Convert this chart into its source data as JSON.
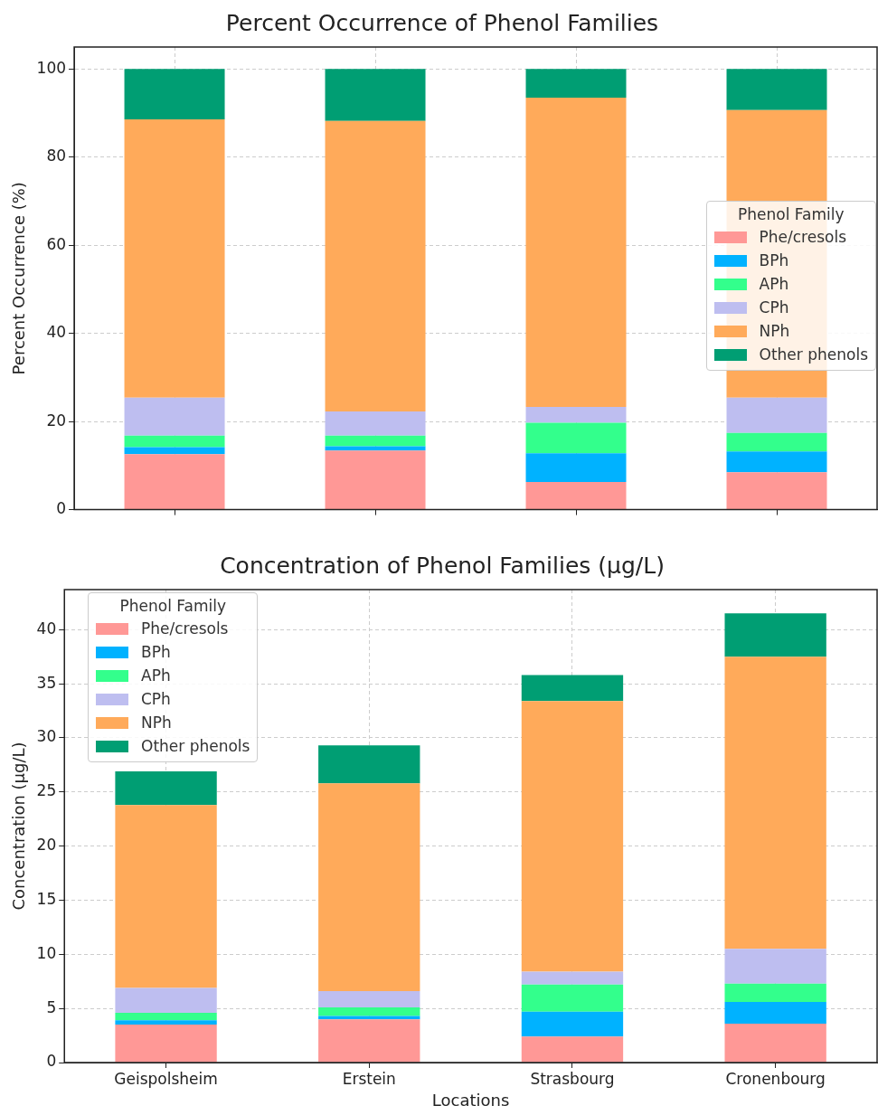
{
  "chart_data": [
    {
      "type": "bar",
      "title": "Percent Occurrence of Phenol Families",
      "ylabel": "Percent Occurrence (%)",
      "legend_title": "Phenol Family",
      "categories": [
        null,
        null,
        null,
        null
      ],
      "stacked": true,
      "ylim": [
        0,
        105
      ],
      "yticks": [
        0,
        20,
        40,
        60,
        80,
        100
      ],
      "grid": true,
      "legend": "right",
      "series": [
        {
          "name": "Phe/cresols",
          "color": "#ff9896",
          "values": [
            12.6,
            13.4,
            6.3,
            8.5
          ]
        },
        {
          "name": "BPh",
          "color": "#00b2ff",
          "values": [
            1.6,
            1.0,
            6.5,
            4.7
          ]
        },
        {
          "name": "APh",
          "color": "#33ff8c",
          "values": [
            2.6,
            2.4,
            6.9,
            4.2
          ]
        },
        {
          "name": "CPh",
          "color": "#bebef0",
          "values": [
            8.6,
            5.5,
            3.6,
            8.0
          ]
        },
        {
          "name": "NPh",
          "color": "#ffaa5a",
          "values": [
            63.2,
            65.9,
            70.2,
            65.3
          ]
        },
        {
          "name": "Other phenols",
          "color": "#009e73",
          "values": [
            11.4,
            11.8,
            6.5,
            9.3
          ]
        }
      ]
    },
    {
      "type": "bar",
      "title": "Concentration of Phenol Families (µg/L)",
      "xlabel": "Locations",
      "ylabel": "Concentration (µg/L)",
      "legend_title": "Phenol Family",
      "categories": [
        "Geispolsheim",
        "Erstein",
        "Strasbourg",
        "Cronenbourg"
      ],
      "stacked": true,
      "ylim": [
        0,
        43.7
      ],
      "yticks": [
        0,
        5,
        10,
        15,
        20,
        25,
        30,
        35,
        40
      ],
      "grid": true,
      "legend": "top left",
      "series": [
        {
          "name": "Phe/cresols",
          "color": "#ff9896",
          "values": [
            3.5,
            4.0,
            2.4,
            3.6
          ]
        },
        {
          "name": "BPh",
          "color": "#00b2ff",
          "values": [
            0.4,
            0.3,
            2.3,
            2.0
          ]
        },
        {
          "name": "APh",
          "color": "#33ff8c",
          "values": [
            0.7,
            0.8,
            2.5,
            1.7
          ]
        },
        {
          "name": "CPh",
          "color": "#bebef0",
          "values": [
            2.3,
            1.5,
            1.2,
            3.2
          ]
        },
        {
          "name": "NPh",
          "color": "#ffaa5a",
          "values": [
            16.9,
            19.2,
            25.0,
            27.0
          ]
        },
        {
          "name": "Other phenols",
          "color": "#009e73",
          "values": [
            3.1,
            3.5,
            2.4,
            4.0
          ]
        }
      ]
    }
  ]
}
